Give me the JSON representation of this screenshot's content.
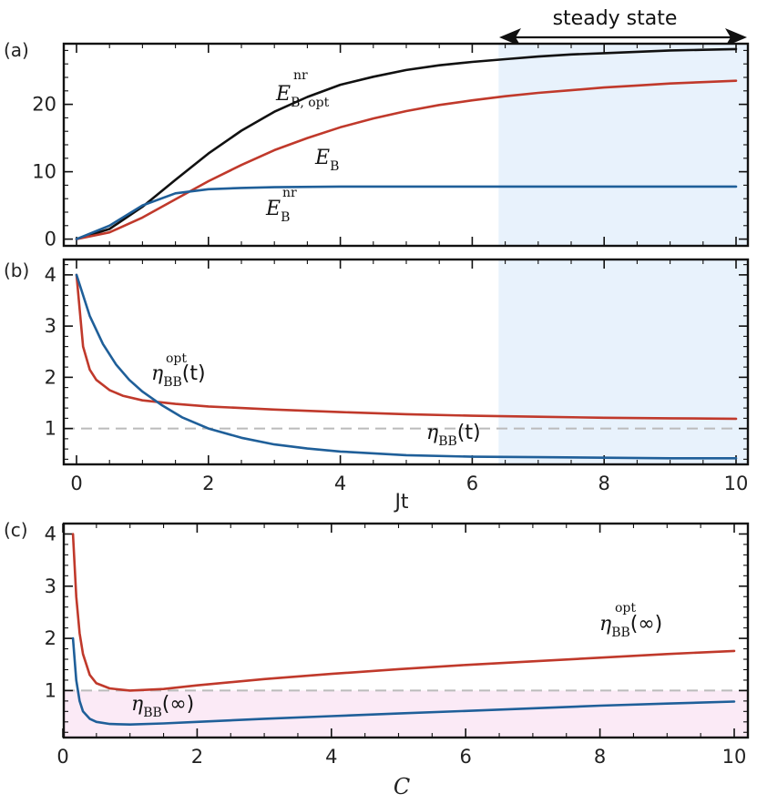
{
  "steady_state_label": "steady state",
  "chart_data": [
    {
      "panel_label": "(a)",
      "type": "line",
      "xlim": [
        0,
        10
      ],
      "ylim": [
        -1,
        29
      ],
      "yticks": [
        "0",
        "10",
        "20"
      ],
      "shaded_region": {
        "x_from": 6.4,
        "x_to": 10,
        "color": "#e8f2fc",
        "meaning": "steady state"
      },
      "series": [
        {
          "name": "E_B,opt^nr",
          "color": "#111111",
          "x": [
            0,
            0.5,
            1,
            1.5,
            2,
            2.5,
            3,
            3.5,
            4,
            4.5,
            5,
            5.5,
            6,
            6.5,
            7,
            7.5,
            8,
            8.5,
            9,
            9.5,
            10
          ],
          "y": [
            0,
            1.5,
            4.8,
            8.8,
            12.7,
            16.1,
            18.9,
            21.1,
            22.9,
            24.1,
            25.1,
            25.8,
            26.3,
            26.7,
            27.1,
            27.4,
            27.6,
            27.8,
            28.0,
            28.1,
            28.2
          ]
        },
        {
          "name": "E_B",
          "color": "#c0392b",
          "x": [
            0,
            0.5,
            1,
            1.5,
            2,
            2.5,
            3,
            3.5,
            4,
            4.5,
            5,
            5.5,
            6,
            6.5,
            7,
            7.5,
            8,
            8.5,
            9,
            9.5,
            10
          ],
          "y": [
            0,
            1.0,
            3.2,
            5.9,
            8.6,
            11.0,
            13.2,
            15.0,
            16.6,
            17.9,
            19.0,
            19.9,
            20.6,
            21.2,
            21.7,
            22.1,
            22.5,
            22.8,
            23.1,
            23.3,
            23.5
          ]
        },
        {
          "name": "E_B^nr",
          "color": "#1f5f99",
          "x": [
            0,
            0.5,
            1,
            1.5,
            2,
            2.5,
            3,
            4,
            5,
            6,
            7,
            8,
            9,
            10
          ],
          "y": [
            0,
            2.0,
            5.0,
            6.8,
            7.4,
            7.6,
            7.7,
            7.8,
            7.8,
            7.8,
            7.8,
            7.8,
            7.8,
            7.8
          ]
        }
      ],
      "annotations": [
        {
          "base": "E",
          "sub": "B, opt",
          "sup": "nr"
        },
        {
          "base": "E",
          "sub": "B",
          "sup": ""
        },
        {
          "base": "E",
          "sub": "B",
          "sup": "nr"
        }
      ]
    },
    {
      "panel_label": "(b)",
      "type": "line",
      "xlabel": "Jt",
      "xlim": [
        0,
        10
      ],
      "ylim": [
        0.3,
        4.3
      ],
      "xticks": [
        "0",
        "2",
        "4",
        "6",
        "8",
        "10"
      ],
      "yticks": [
        "1",
        "2",
        "3",
        "4"
      ],
      "reference_line_y": 1,
      "shaded_region": {
        "x_from": 6.4,
        "x_to": 10,
        "color": "#e8f2fc",
        "meaning": "steady state"
      },
      "series": [
        {
          "name": "eta_BB^opt(t)",
          "color": "#c0392b",
          "x": [
            0,
            0.1,
            0.2,
            0.3,
            0.5,
            0.7,
            1,
            1.5,
            2,
            3,
            4,
            5,
            6,
            7,
            8,
            9,
            10
          ],
          "y": [
            4.0,
            2.6,
            2.15,
            1.95,
            1.75,
            1.64,
            1.55,
            1.48,
            1.43,
            1.37,
            1.32,
            1.28,
            1.25,
            1.23,
            1.21,
            1.2,
            1.19
          ]
        },
        {
          "name": "eta_BB(t)",
          "color": "#1f5f99",
          "x": [
            0,
            0.2,
            0.4,
            0.6,
            0.8,
            1,
            1.3,
            1.6,
            2,
            2.5,
            3,
            3.5,
            4,
            5,
            6,
            7,
            8,
            9,
            10
          ],
          "y": [
            4.0,
            3.2,
            2.65,
            2.25,
            1.95,
            1.72,
            1.45,
            1.22,
            1.0,
            0.82,
            0.69,
            0.61,
            0.55,
            0.48,
            0.45,
            0.44,
            0.43,
            0.42,
            0.42
          ]
        }
      ],
      "annotations": [
        {
          "base": "η",
          "sub": "BB",
          "sup": "opt",
          "tail": "(t)"
        },
        {
          "base": "η",
          "sub": "BB",
          "sup": "",
          "tail": "(t)"
        }
      ]
    },
    {
      "panel_label": "(c)",
      "type": "line",
      "xlabel": "C",
      "xlim": [
        0,
        10
      ],
      "ylim": [
        0.1,
        4.2
      ],
      "xticks": [
        "0",
        "2",
        "4",
        "6",
        "8",
        "10"
      ],
      "yticks": [
        "1",
        "2",
        "3",
        "4"
      ],
      "reference_line_y": 1,
      "shaded_region": {
        "y_from": 0.1,
        "y_to": 1,
        "color": "#fbeaf6"
      },
      "series": [
        {
          "name": "eta_BB^opt(inf)",
          "color": "#c0392b",
          "x": [
            0.15,
            0.2,
            0.25,
            0.3,
            0.4,
            0.5,
            0.7,
            1,
            1.5,
            2,
            3,
            4,
            5,
            6,
            7,
            8,
            9,
            10
          ],
          "y": [
            4.0,
            2.8,
            2.1,
            1.7,
            1.3,
            1.14,
            1.04,
            1.0,
            1.03,
            1.1,
            1.22,
            1.32,
            1.41,
            1.49,
            1.56,
            1.63,
            1.7,
            1.76
          ]
        },
        {
          "name": "eta_BB(inf)",
          "color": "#1f5f99",
          "x": [
            0.15,
            0.2,
            0.25,
            0.3,
            0.4,
            0.5,
            0.7,
            1,
            1.5,
            2,
            3,
            4,
            5,
            6,
            7,
            8,
            9,
            10
          ],
          "y": [
            2.0,
            1.2,
            0.8,
            0.6,
            0.46,
            0.4,
            0.36,
            0.35,
            0.37,
            0.4,
            0.46,
            0.51,
            0.56,
            0.61,
            0.66,
            0.71,
            0.75,
            0.79
          ]
        }
      ],
      "annotations": [
        {
          "base": "η",
          "sub": "BB",
          "sup": "opt",
          "tail": "(∞)"
        },
        {
          "base": "η",
          "sub": "BB",
          "sup": "",
          "tail": "(∞)"
        }
      ]
    }
  ]
}
